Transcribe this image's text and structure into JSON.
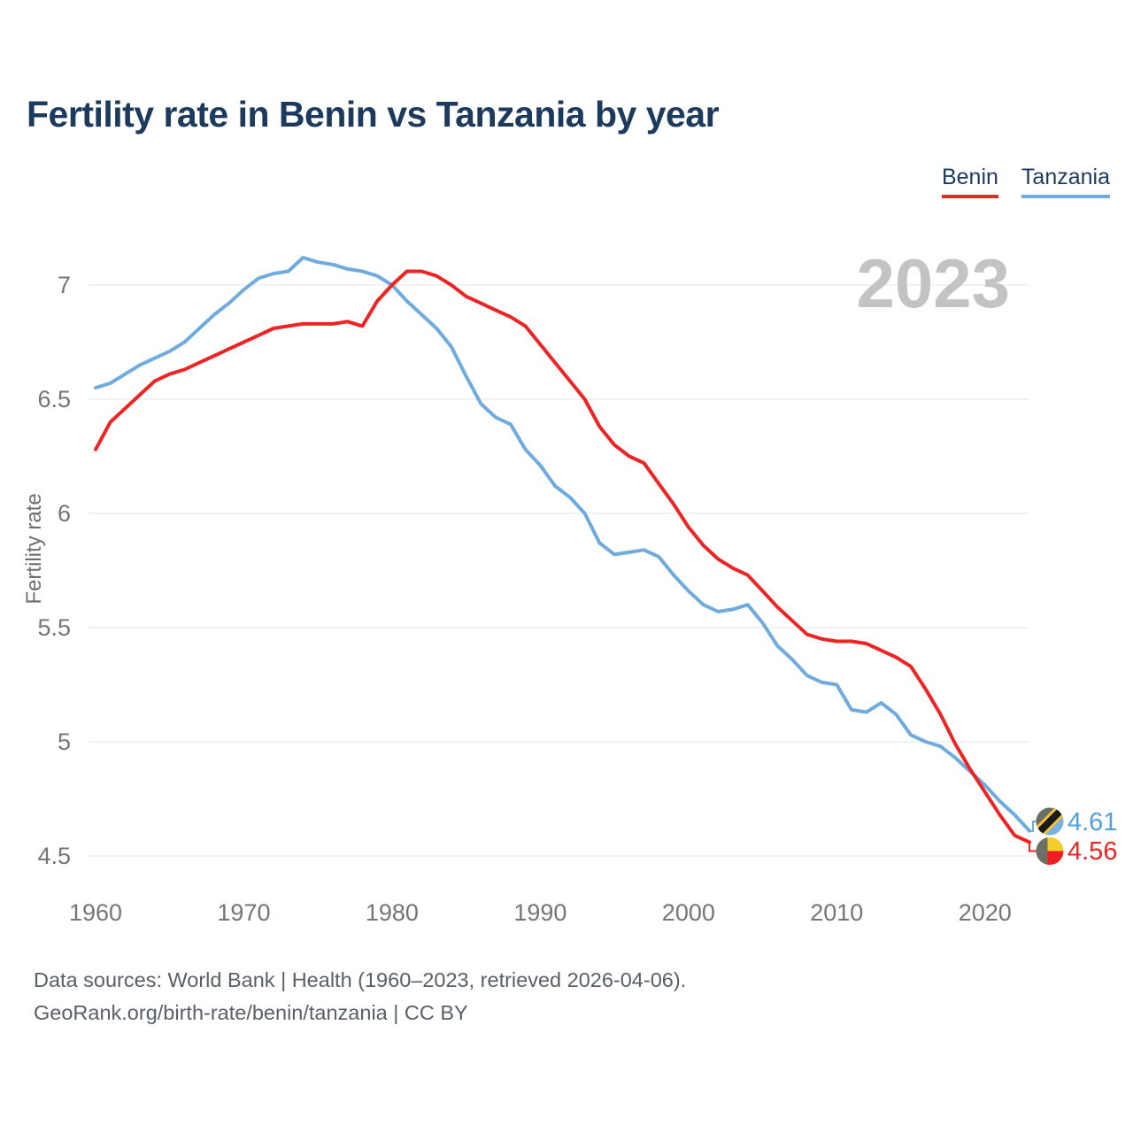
{
  "title": "Fertility rate in Benin vs Tanzania by year",
  "legend": [
    {
      "label": "Benin",
      "color": "#ee2424"
    },
    {
      "label": "Tanzania",
      "color": "#6fabde"
    }
  ],
  "watermark": "2023",
  "end_labels": {
    "tanzania": "4.61",
    "benin": "4.56",
    "tanzania_color": "#4f9fe2",
    "benin_color": "#ee2424"
  },
  "footer": {
    "line1": "Data sources: World Bank | Health (1960–2023, retrieved 2026-04-06).",
    "line2": "GeoRank.org/birth-rate/benin/tanzania | CC BY"
  },
  "chart_data": {
    "type": "line",
    "title": "Fertility rate in Benin vs Tanzania by year",
    "xlabel": "",
    "ylabel": "Fertility rate",
    "xlim": [
      1960,
      2023
    ],
    "ylim": [
      4.35,
      7.25
    ],
    "grid": "horizontal",
    "legend_position": "top-right",
    "x_ticks": [
      1960,
      1970,
      1980,
      1990,
      2000,
      2010,
      2020
    ],
    "y_ticks": [
      7,
      6.5,
      6,
      5.5,
      5,
      4.5
    ],
    "tick_color": "#757575",
    "grid_color": "#e5e5e5",
    "years": [
      1960,
      1961,
      1962,
      1963,
      1964,
      1965,
      1966,
      1967,
      1968,
      1969,
      1970,
      1971,
      1972,
      1973,
      1974,
      1975,
      1976,
      1977,
      1978,
      1979,
      1980,
      1981,
      1982,
      1983,
      1984,
      1985,
      1986,
      1987,
      1988,
      1989,
      1990,
      1991,
      1992,
      1993,
      1994,
      1995,
      1996,
      1997,
      1998,
      1999,
      2000,
      2001,
      2002,
      2003,
      2004,
      2005,
      2006,
      2007,
      2008,
      2009,
      2010,
      2011,
      2012,
      2013,
      2014,
      2015,
      2016,
      2017,
      2018,
      2019,
      2020,
      2021,
      2022,
      2023
    ],
    "series": [
      {
        "name": "Tanzania",
        "color": "#6fabde",
        "values": [
          6.55,
          6.57,
          6.61,
          6.65,
          6.68,
          6.71,
          6.75,
          6.81,
          6.87,
          6.92,
          6.98,
          7.03,
          7.05,
          7.06,
          7.12,
          7.1,
          7.09,
          7.07,
          7.06,
          7.04,
          7.0,
          6.93,
          6.87,
          6.81,
          6.73,
          6.6,
          6.48,
          6.42,
          6.39,
          6.28,
          6.21,
          6.12,
          6.07,
          6.0,
          5.87,
          5.82,
          5.83,
          5.84,
          5.81,
          5.73,
          5.66,
          5.6,
          5.57,
          5.58,
          5.6,
          5.52,
          5.42,
          5.36,
          5.29,
          5.26,
          5.25,
          5.14,
          5.13,
          5.17,
          5.12,
          5.03,
          5.0,
          4.98,
          4.93,
          4.87,
          4.81,
          4.74,
          4.68,
          4.61
        ]
      },
      {
        "name": "Benin",
        "color": "#ee2424",
        "values": [
          6.28,
          6.4,
          6.46,
          6.52,
          6.58,
          6.61,
          6.63,
          6.66,
          6.69,
          6.72,
          6.75,
          6.78,
          6.81,
          6.82,
          6.83,
          6.83,
          6.83,
          6.84,
          6.82,
          6.93,
          7.0,
          7.06,
          7.06,
          7.04,
          7.0,
          6.95,
          6.92,
          6.89,
          6.86,
          6.82,
          6.74,
          6.66,
          6.58,
          6.5,
          6.38,
          6.3,
          6.25,
          6.22,
          6.13,
          6.04,
          5.94,
          5.86,
          5.8,
          5.76,
          5.73,
          5.66,
          5.59,
          5.53,
          5.47,
          5.45,
          5.44,
          5.44,
          5.43,
          5.4,
          5.37,
          5.33,
          5.23,
          5.12,
          4.99,
          4.88,
          4.78,
          4.68,
          4.59,
          4.56
        ]
      }
    ]
  }
}
